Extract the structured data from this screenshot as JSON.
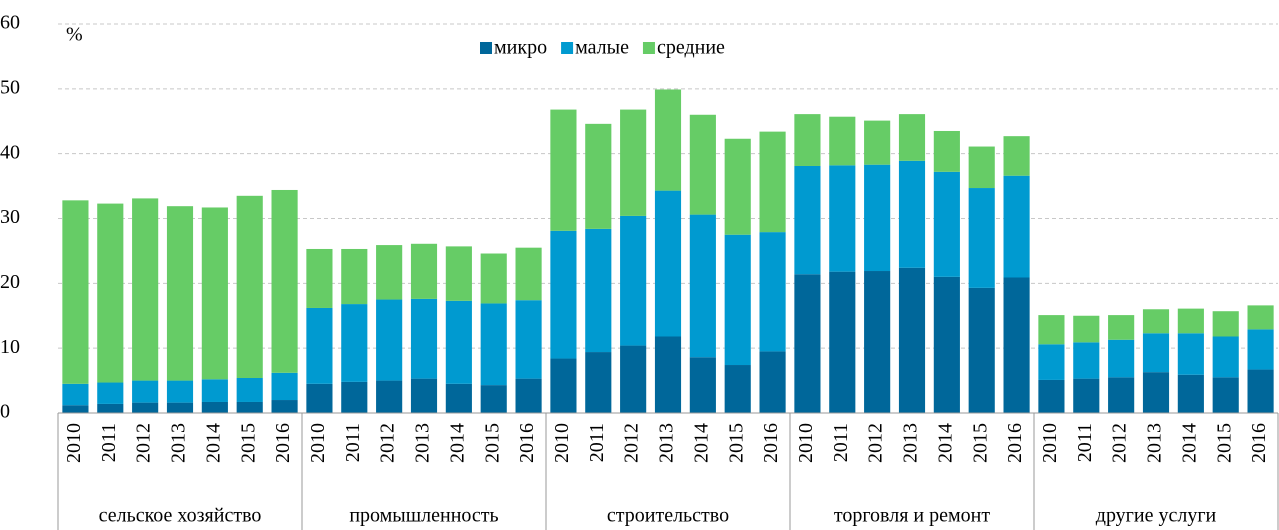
{
  "chart_data": {
    "type": "stacked_bar",
    "y_label": "%",
    "categories": [
      "2010",
      "2011",
      "2012",
      "2013",
      "2014",
      "2015",
      "2016",
      "2010",
      "2011",
      "2012",
      "2013",
      "2014",
      "2015",
      "2016",
      "2010",
      "2011",
      "2012",
      "2013",
      "2014",
      "2015",
      "2016",
      "2010",
      "2011",
      "2012",
      "2013",
      "2014",
      "2015",
      "2016",
      "2010",
      "2011",
      "2012",
      "2013",
      "2014",
      "2015",
      "2016"
    ],
    "groups": [
      "сельское хозяйство",
      "промышленность",
      "строительство",
      "торговля и ремонт",
      "другие услуги"
    ],
    "series": [
      {
        "name": "микро",
        "color": "#00679a",
        "values": [
          1.2,
          1.4,
          1.6,
          1.6,
          1.7,
          1.7,
          2.0,
          4.5,
          4.8,
          5.0,
          5.3,
          4.5,
          4.3,
          5.3,
          8.4,
          9.4,
          10.4,
          11.8,
          8.6,
          7.4,
          9.5,
          21.4,
          21.8,
          21.9,
          22.4,
          21.0,
          19.3,
          20.9,
          5.1,
          5.3,
          5.5,
          6.3,
          5.9,
          5.5,
          6.7
        ]
      },
      {
        "name": "малые",
        "color": "#009ad0",
        "values": [
          3.3,
          3.3,
          3.4,
          3.4,
          3.5,
          3.7,
          4.2,
          11.7,
          12.0,
          12.5,
          12.3,
          12.8,
          12.6,
          12.1,
          19.7,
          19.0,
          20.0,
          22.5,
          22.0,
          20.1,
          18.4,
          16.7,
          16.4,
          16.4,
          16.5,
          16.2,
          15.4,
          15.7,
          5.5,
          5.6,
          5.8,
          6.0,
          6.4,
          6.3,
          6.2
        ]
      },
      {
        "name": "средние",
        "color": "#66cc66",
        "values": [
          28.3,
          27.6,
          28.1,
          26.9,
          26.5,
          28.1,
          28.2,
          9.1,
          8.5,
          8.4,
          8.5,
          8.4,
          7.7,
          8.1,
          18.7,
          16.2,
          16.4,
          15.6,
          15.4,
          14.8,
          15.5,
          8.0,
          7.5,
          6.8,
          7.2,
          6.3,
          6.4,
          6.1,
          4.5,
          4.1,
          3.8,
          3.7,
          3.8,
          3.9,
          3.7
        ]
      }
    ],
    "ylim": [
      0,
      60
    ],
    "yticks": [
      0,
      10,
      20,
      30,
      40,
      50,
      60
    ],
    "grid": true,
    "legend": "top"
  }
}
